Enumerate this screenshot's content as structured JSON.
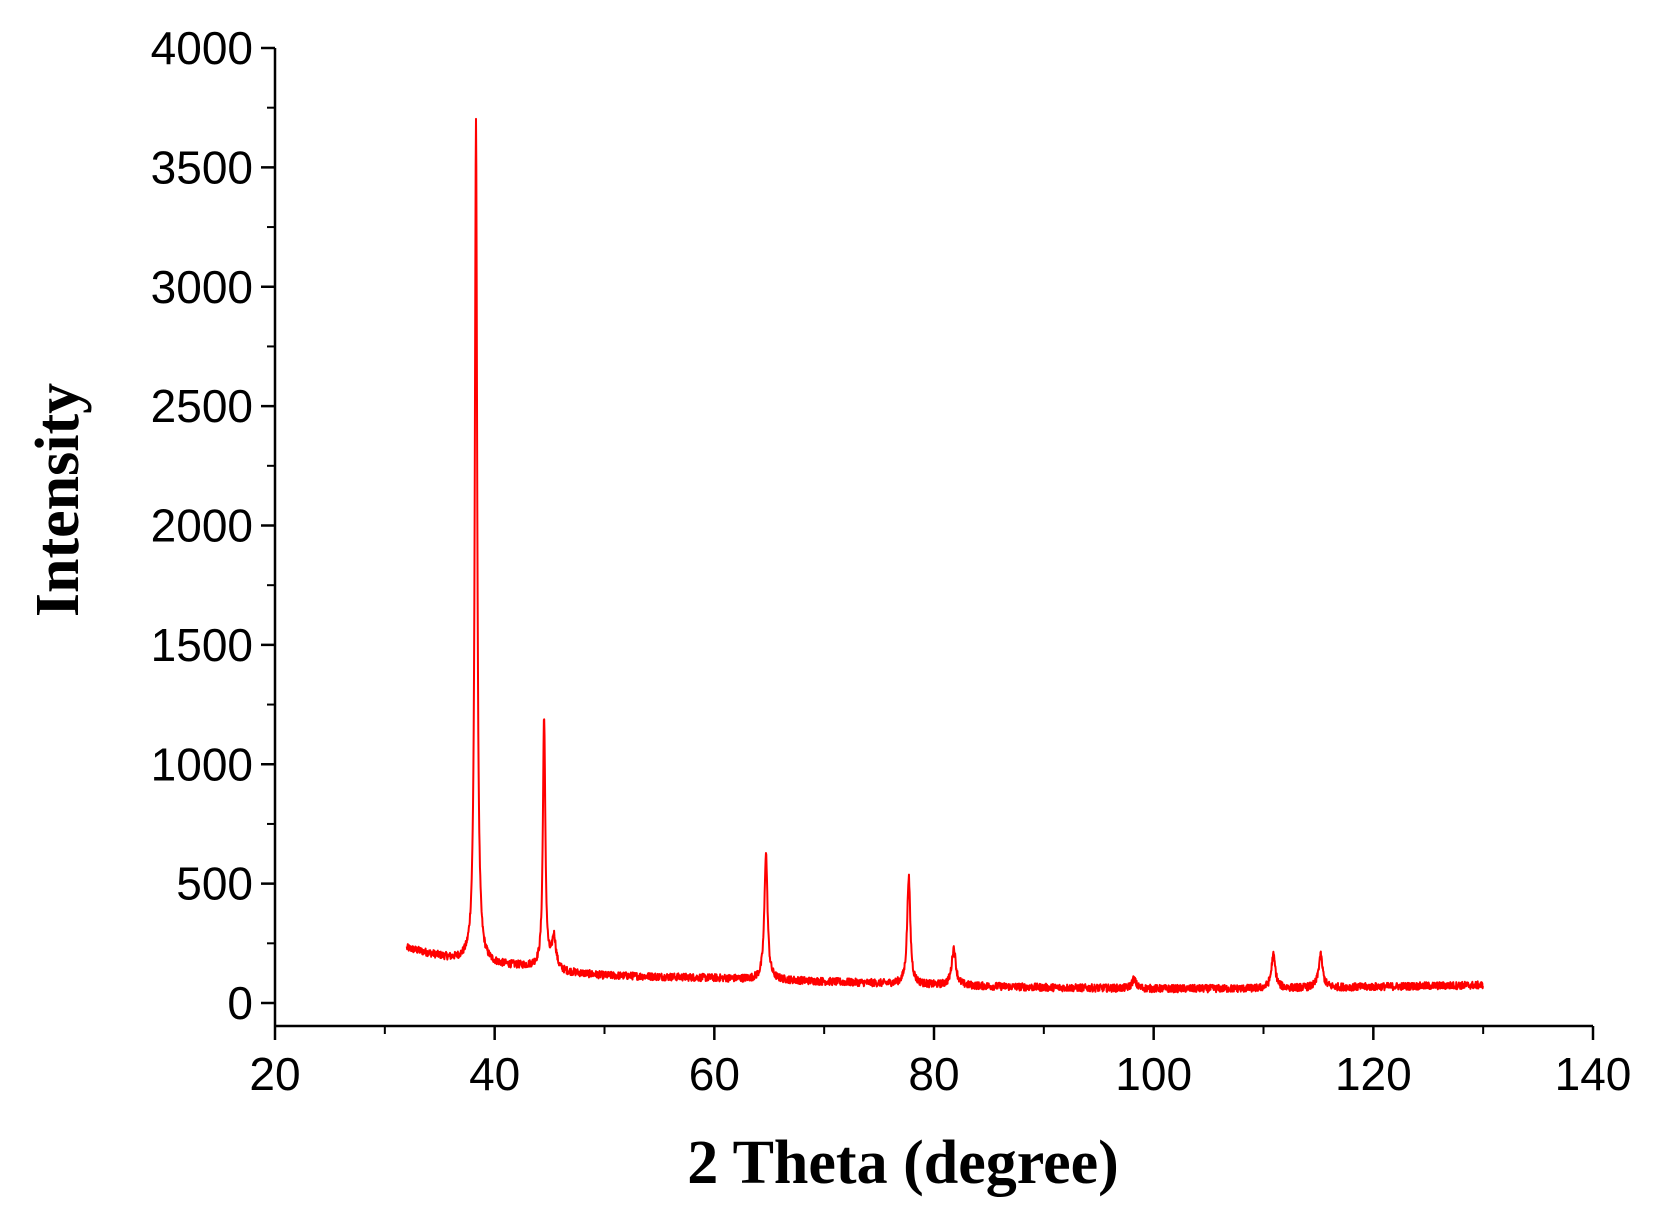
{
  "chart_data": {
    "type": "line",
    "xlabel": "2 Theta (degree)",
    "ylabel": "Intensity",
    "xlim": [
      20,
      140
    ],
    "ylim": [
      0,
      4000
    ],
    "x_ticks": [
      20,
      40,
      60,
      80,
      100,
      120,
      140
    ],
    "y_ticks": [
      0,
      500,
      1000,
      1500,
      2000,
      2500,
      3000,
      3500,
      4000
    ],
    "grid": false,
    "legend": "none",
    "series": [
      {
        "color": "#ff0000",
        "baseline": [
          [
            32,
            230
          ],
          [
            36,
            185
          ],
          [
            40,
            160
          ],
          [
            44,
            150
          ],
          [
            46,
            130
          ],
          [
            50,
            115
          ],
          [
            60,
            105
          ],
          [
            70,
            90
          ],
          [
            80,
            75
          ],
          [
            90,
            65
          ],
          [
            100,
            60
          ],
          [
            110,
            60
          ],
          [
            120,
            68
          ],
          [
            130,
            75
          ]
        ],
        "peaks": [
          {
            "x": 38.3,
            "y": 3690
          },
          {
            "x": 44.5,
            "y": 1200
          },
          {
            "x": 45.4,
            "y": 270
          },
          {
            "x": 64.7,
            "y": 630
          },
          {
            "x": 77.7,
            "y": 530
          },
          {
            "x": 81.8,
            "y": 230
          },
          {
            "x": 98.2,
            "y": 100
          },
          {
            "x": 110.9,
            "y": 200
          },
          {
            "x": 115.2,
            "y": 200
          }
        ],
        "x_range": [
          32,
          130
        ]
      }
    ]
  }
}
